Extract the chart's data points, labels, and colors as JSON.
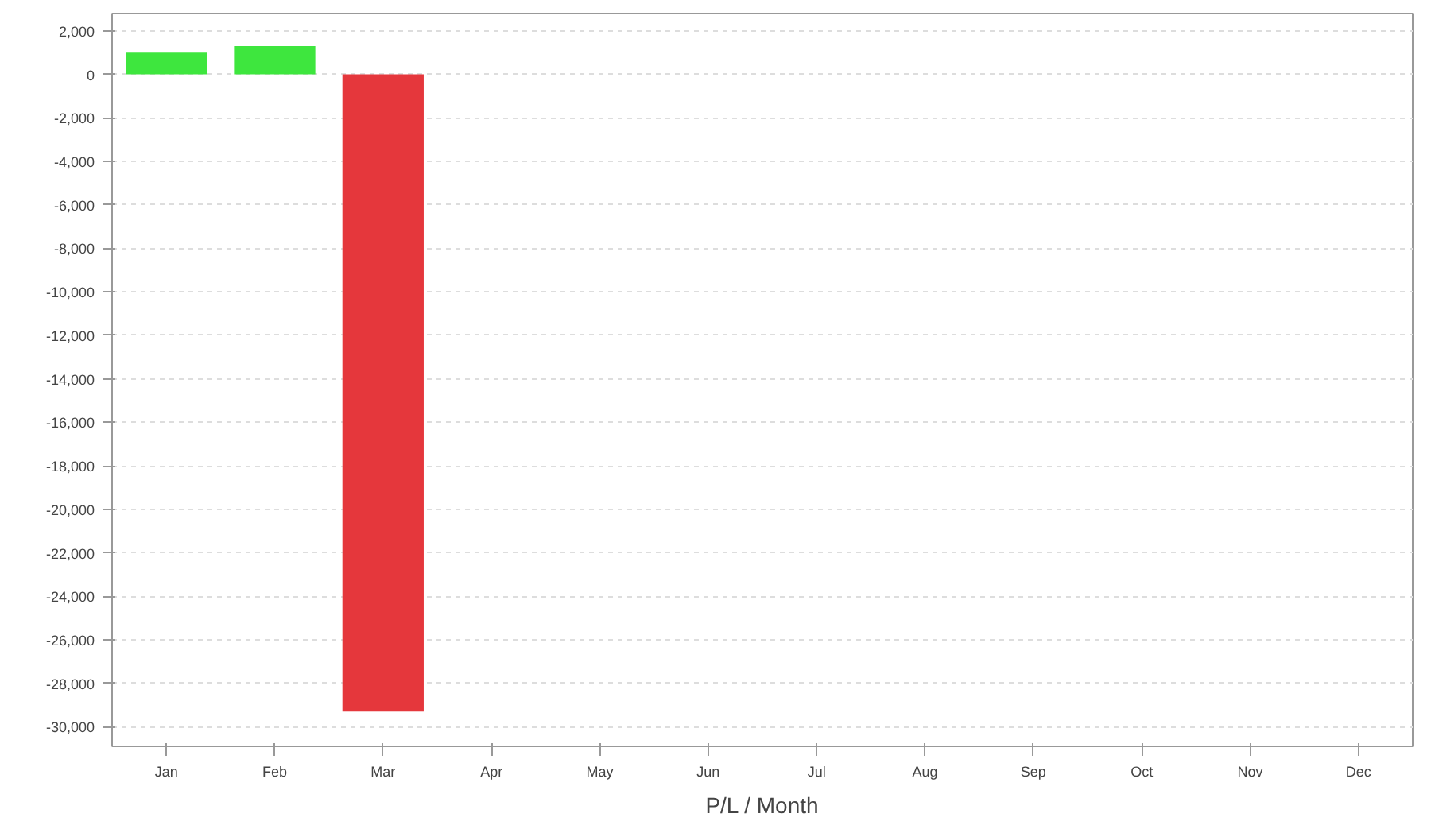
{
  "chart_data": {
    "type": "bar",
    "xlabel": "P/L / Month",
    "categories": [
      "Jan",
      "Feb",
      "Mar",
      "Apr",
      "May",
      "Jun",
      "Jul",
      "Aug",
      "Sep",
      "Oct",
      "Nov",
      "Dec"
    ],
    "values": [
      1000,
      1300,
      -29300,
      null,
      null,
      null,
      null,
      null,
      null,
      null,
      null,
      null
    ],
    "colors": [
      "#3ee63e",
      "#3ee63e",
      "#e5373c",
      null,
      null,
      null,
      null,
      null,
      null,
      null,
      null,
      null
    ],
    "ylim": [
      -30900,
      2800
    ],
    "yticks": [
      {
        "value": 2000,
        "label": "2,000"
      },
      0,
      {
        "value": -2000,
        "label": "-2,000"
      },
      {
        "value": -4000,
        "label": "-4,000"
      },
      {
        "value": -6000,
        "label": "-6,000"
      },
      {
        "value": -8000,
        "label": "-8,000"
      },
      {
        "value": -10000,
        "label": "-10,000"
      },
      {
        "value": -12000,
        "label": "-12,000"
      },
      {
        "value": -14000,
        "label": "-14,000"
      },
      {
        "value": -16000,
        "label": "-16,000"
      },
      {
        "value": -18000,
        "label": "-18,000"
      },
      {
        "value": -20000,
        "label": "-20,000"
      },
      {
        "value": -22000,
        "label": "-22,000"
      },
      {
        "value": -24000,
        "label": "-24,000"
      },
      {
        "value": -26000,
        "label": "-26,000"
      },
      {
        "value": -28000,
        "label": "-28,000"
      },
      {
        "value": -30000,
        "label": "-30,000"
      }
    ],
    "grid": "y"
  }
}
